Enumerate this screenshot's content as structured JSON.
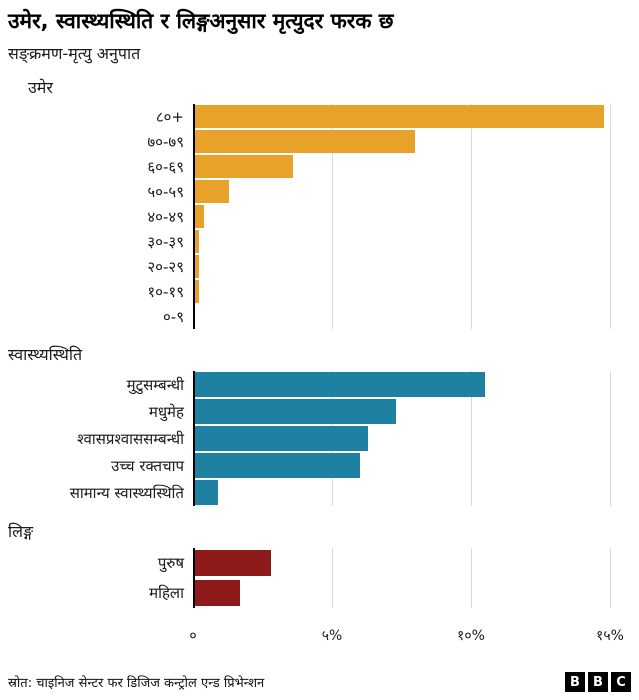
{
  "header": {
    "title": "उमेर, स्वास्थ्यस्थिति र लिङ्गअनुसार मृत्युदर फरक छ",
    "subtitle": "सङ्क्रमण-मृत्यु अनुपात"
  },
  "chart_data": {
    "type": "bar",
    "orientation": "horizontal",
    "unit": "%",
    "axis_max": 15.54,
    "grid": "vertical",
    "xticks": [
      {
        "value": 0,
        "label": "०"
      },
      {
        "value": 5,
        "label": "५%"
      },
      {
        "value": 10,
        "label": "१०%"
      },
      {
        "value": 15,
        "label": "१५%"
      }
    ],
    "groups": [
      {
        "name": "उमेर",
        "color": "#e9a229",
        "rows": [
          {
            "label": "८०+",
            "value": 14.8
          },
          {
            "label": "७०-७९",
            "value": 8.0
          },
          {
            "label": "६०-६९",
            "value": 3.6
          },
          {
            "label": "५०-५९",
            "value": 1.3
          },
          {
            "label": "४०-४९",
            "value": 0.4
          },
          {
            "label": "३०-३९",
            "value": 0.2
          },
          {
            "label": "२०-२९",
            "value": 0.2
          },
          {
            "label": "१०-१९",
            "value": 0.2
          },
          {
            "label": "०-९",
            "value": 0
          }
        ]
      },
      {
        "name": "स्वास्थ्यस्थिति",
        "color": "#1e81a1",
        "rows": [
          {
            "label": "मुटुसम्बन्धी",
            "value": 10.5
          },
          {
            "label": "मधुमेह",
            "value": 7.3
          },
          {
            "label": "श्वासप्रश्वाससम्बन्धी",
            "value": 6.3
          },
          {
            "label": "उच्च रक्तचाप",
            "value": 6.0
          },
          {
            "label": "सामान्य स्वास्थ्यस्थिति",
            "value": 0.9
          }
        ]
      },
      {
        "name": "लिङ्ग",
        "color": "#8e1a1a",
        "rows": [
          {
            "label": "पुरुष",
            "value": 2.8
          },
          {
            "label": "महिला",
            "value": 1.7
          }
        ]
      }
    ]
  },
  "footer": {
    "source": "स्रोत: चाइनिज सेन्टर फर डिजिज कन्ट्रोल एन्ड प्रिभेन्शन",
    "logo": [
      "B",
      "B",
      "C"
    ]
  }
}
